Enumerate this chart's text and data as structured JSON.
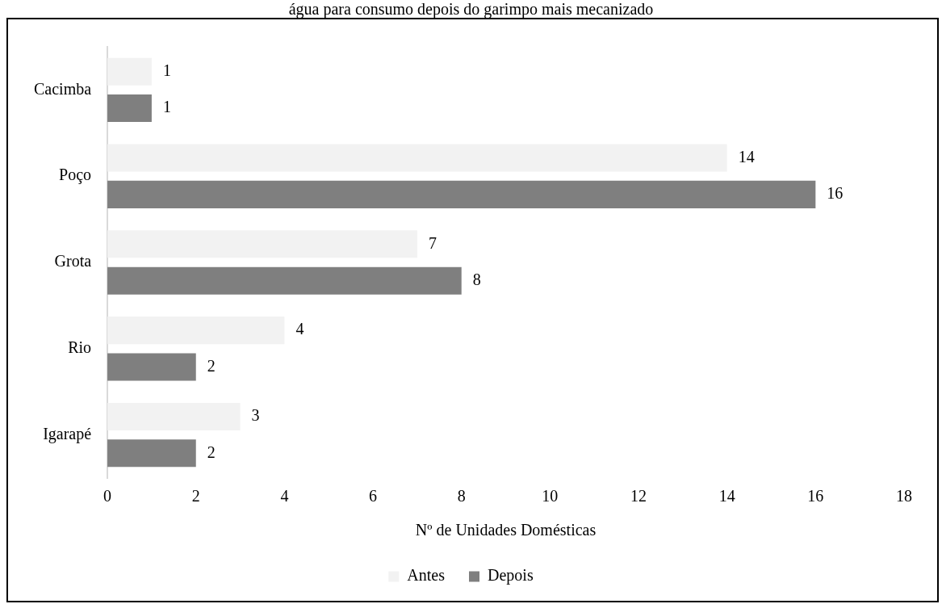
{
  "chart_data": {
    "type": "bar",
    "orientation": "horizontal",
    "title": "água para consumo depois do garimpo mais mecanizado",
    "xlabel": "Nº de Unidades Domésticas",
    "categories": [
      "Cacimba",
      "Poço",
      "Grota",
      "Rio",
      "Igarapé"
    ],
    "series": [
      {
        "name": "Antes",
        "color": "#f2f2f2",
        "values": [
          1,
          14,
          7,
          4,
          3
        ]
      },
      {
        "name": "Depois",
        "color": "#7f7f7f",
        "values": [
          1,
          16,
          8,
          2,
          2
        ]
      }
    ],
    "xlim": [
      0,
      18
    ],
    "xticks": [
      0,
      2,
      4,
      6,
      8,
      10,
      12,
      14,
      16,
      18
    ],
    "grid": false,
    "legend": "bottom",
    "data_labels": true
  }
}
